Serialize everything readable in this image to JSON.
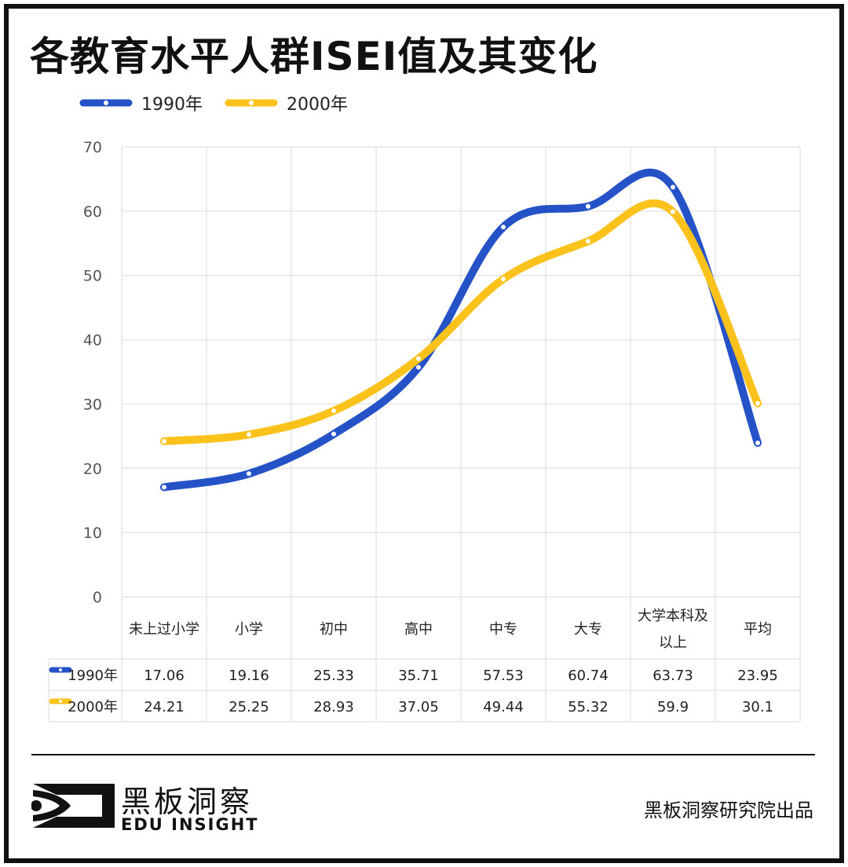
{
  "title": "各教育水平人群ISEI值及其变化",
  "colors": {
    "series_1990": "#2552c6",
    "series_2000": "#fbc21b",
    "grid": "#e6e6e6",
    "text": "#222222"
  },
  "chart_data": {
    "type": "line",
    "smooth": true,
    "categories": [
      "未上过小学",
      "小学",
      "初中",
      "高中",
      "中专",
      "大专",
      "大学本科及以上",
      "平均"
    ],
    "category_lines": [
      [
        "未上过小学"
      ],
      [
        "小学"
      ],
      [
        "初中"
      ],
      [
        "高中"
      ],
      [
        "中专"
      ],
      [
        "大专"
      ],
      [
        "大学本科及",
        "以上"
      ],
      [
        "平均"
      ]
    ],
    "series": [
      {
        "name": "1990年",
        "values": [
          17.06,
          19.16,
          25.33,
          35.71,
          57.53,
          60.74,
          63.73,
          23.95
        ]
      },
      {
        "name": "2000年",
        "values": [
          24.21,
          25.25,
          28.93,
          37.05,
          49.44,
          55.32,
          59.9,
          30.1
        ]
      }
    ],
    "table_values": [
      [
        "17.06",
        "19.16",
        "25.33",
        "35.71",
        "57.53",
        "60.74",
        "63.73",
        "23.95"
      ],
      [
        "24.21",
        "25.25",
        "28.93",
        "37.05",
        "49.44",
        "55.32",
        "59.9",
        "30.1"
      ]
    ],
    "ylim": [
      0,
      70
    ],
    "yticks": [
      "0",
      "10",
      "20",
      "30",
      "40",
      "50",
      "60",
      "70"
    ],
    "legend_position": "top-left",
    "grid": true,
    "data_table": true
  },
  "footer": {
    "brand_cn": "黑板洞察",
    "brand_en": "EDU INSIGHT",
    "credit": "黑板洞察研究院出品"
  }
}
